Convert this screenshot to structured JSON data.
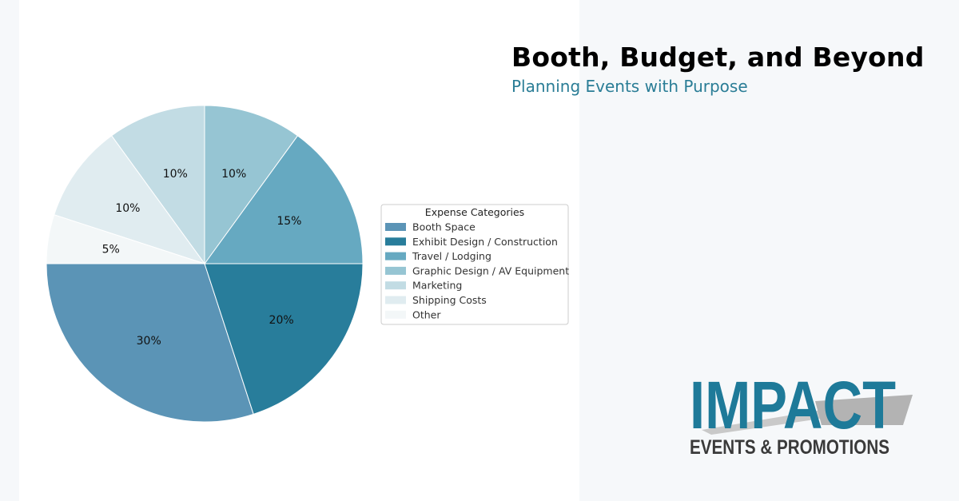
{
  "header": {
    "title": "Booth, Budget, and Beyond",
    "subtitle": "Planning Events with Purpose"
  },
  "brand": {
    "logo_text": "IMPACT",
    "logo_tagline": "EVENTS & PROMOTIONS",
    "logo_color": "#1e7a99",
    "tagline_color": "#3a3a3a"
  },
  "chart_data": {
    "type": "pie",
    "title": "",
    "legend_title": "Expense Categories",
    "legend_position": "right",
    "start_angle_deg": 180,
    "direction": "counterclockwise",
    "slices": [
      {
        "label": "Booth Space",
        "value": 30,
        "display": "30%",
        "color": "#5b94b6"
      },
      {
        "label": "Exhibit Design / Construction",
        "value": 20,
        "display": "20%",
        "color": "#287d9b"
      },
      {
        "label": "Travel / Lodging",
        "value": 15,
        "display": "15%",
        "color": "#66a9c1"
      },
      {
        "label": "Graphic Design / AV Equipment",
        "value": 10,
        "display": "10%",
        "color": "#96c5d3"
      },
      {
        "label": "Marketing",
        "value": 10,
        "display": "10%",
        "color": "#c2dce4"
      },
      {
        "label": "Shipping Costs",
        "value": 10,
        "display": "10%",
        "color": "#e0ecf0"
      },
      {
        "label": "Other",
        "value": 5,
        "display": "5%",
        "color": "#f3f7f8"
      }
    ]
  }
}
